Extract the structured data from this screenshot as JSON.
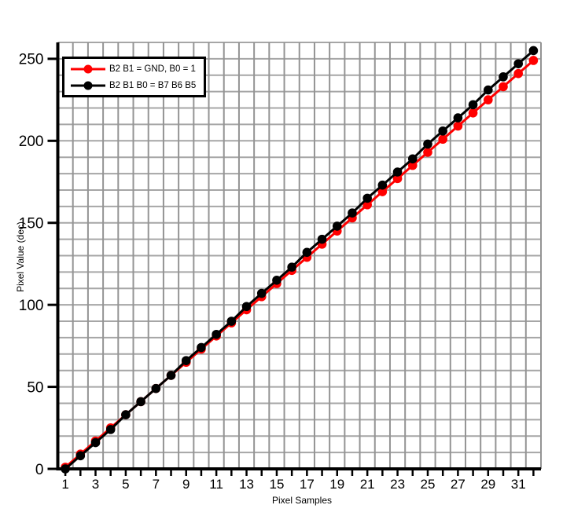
{
  "chart_data": {
    "type": "line",
    "title": "",
    "xlabel": "Pixel Samples",
    "ylabel": "Pixel Value (dec)",
    "x": [
      1,
      2,
      3,
      4,
      5,
      6,
      7,
      8,
      9,
      10,
      11,
      12,
      13,
      14,
      15,
      16,
      17,
      18,
      19,
      20,
      21,
      22,
      23,
      24,
      25,
      26,
      27,
      28,
      29,
      30,
      31,
      32
    ],
    "series": [
      {
        "name": "B2 B1 = GND, B0 = 1",
        "color": "#ff0000",
        "values": [
          1,
          9,
          17,
          25,
          33,
          41,
          49,
          57,
          65,
          73,
          81,
          89,
          97,
          105,
          113,
          121,
          129,
          137,
          145,
          153,
          161,
          169,
          177,
          185,
          193,
          201,
          209,
          217,
          225,
          233,
          241,
          249
        ]
      },
      {
        "name": "B2 B1 B0 = B7 B6 B5",
        "color": "#000000",
        "values": [
          0,
          8,
          16,
          24,
          33,
          41,
          49,
          57,
          66,
          74,
          82,
          90,
          99,
          107,
          115,
          123,
          132,
          140,
          148,
          156,
          165,
          173,
          181,
          189,
          198,
          206,
          214,
          222,
          231,
          239,
          247,
          255
        ]
      }
    ],
    "xlim": [
      0.5,
      32.5
    ],
    "ylim": [
      0,
      260
    ],
    "x_tick_step": 1,
    "x_labels_shown": [
      1,
      3,
      5,
      7,
      9,
      11,
      13,
      15,
      17,
      19,
      21,
      23,
      25,
      27,
      29,
      31
    ],
    "y_ticks": [
      0,
      50,
      100,
      150,
      200,
      250
    ],
    "y_grid_step": 10,
    "x_grid_step": 1,
    "grid": true,
    "legend_position": "top-left",
    "colors": {
      "axis": "#000000",
      "grid_vertical": "#949494",
      "grid_horizontal": "#a6a6a6",
      "background": "#ffffff",
      "tick_label": "#000000"
    }
  }
}
